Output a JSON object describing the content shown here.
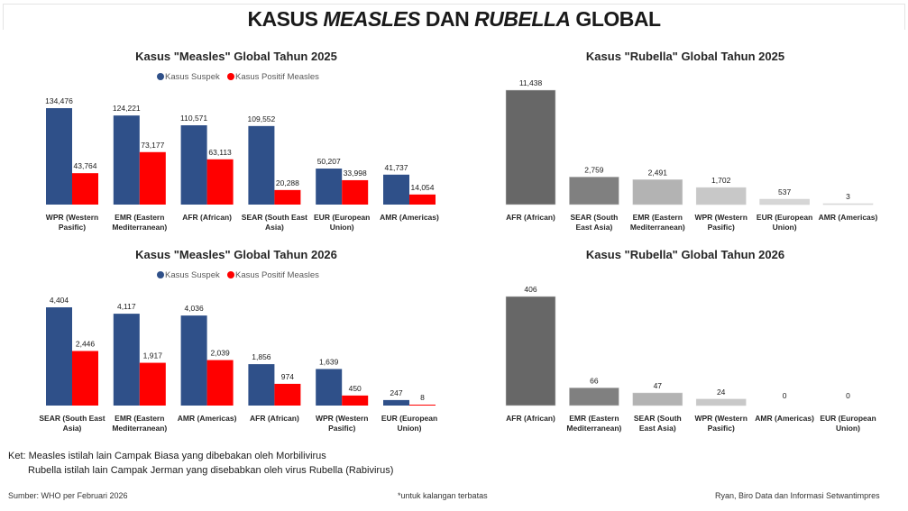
{
  "header": {
    "title_parts": [
      "KASUS ",
      "MEASLES",
      " DAN ",
      "RUBELLA",
      " GLOBAL"
    ]
  },
  "colors": {
    "suspek": "#2f5089",
    "positif": "#ff0000",
    "rubella_shades": [
      "#676767",
      "#808080",
      "#b3b3b3",
      "#c8c8c8",
      "#d6d6d6",
      "#dedede"
    ]
  },
  "chart_data": [
    {
      "id": "measles2025",
      "type": "bar",
      "title": "Kasus \"Measles\" Global Tahun 2025",
      "categories": [
        "WPR (Western|Pasific)",
        "EMR (Eastern|Mediterranean)",
        "AFR (African)",
        "SEAR (South East|Asia)",
        "EUR (European|Union)",
        "AMR (Americas)"
      ],
      "series": [
        {
          "name": "Kasus Suspek",
          "values": [
            134476,
            124221,
            110571,
            109552,
            50207,
            41737
          ]
        },
        {
          "name": "Kasus Positif Measles",
          "values": [
            43764,
            73177,
            63113,
            20288,
            33998,
            14054
          ]
        }
      ],
      "legend": "top-center",
      "grid": false,
      "ylim": [
        0,
        134476
      ]
    },
    {
      "id": "rubella2025",
      "type": "bar",
      "title": "Kasus \"Rubella\" Global Tahun 2025",
      "categories": [
        "AFR (African)",
        "SEAR (South|East Asia)",
        "EMR (Eastern|Mediterranean)",
        "WPR (Western|Pasific)",
        "EUR (European|Union)",
        "AMR (Americas)"
      ],
      "values": [
        11438,
        2759,
        2491,
        1702,
        537,
        3
      ],
      "legend": "none",
      "grid": false,
      "ylim": [
        0,
        11438
      ]
    },
    {
      "id": "measles2026",
      "type": "bar",
      "title": "Kasus \"Measles\" Global Tahun 2026",
      "categories": [
        "SEAR (South East|Asia)",
        "EMR (Eastern|Mediterranean)",
        "AMR (Americas)",
        "AFR (African)",
        "WPR (Western|Pasific)",
        "EUR (European|Union)"
      ],
      "series": [
        {
          "name": "Kasus Suspek",
          "values": [
            4404,
            4117,
            4036,
            1856,
            1639,
            247
          ]
        },
        {
          "name": "Kasus Positif Measles",
          "values": [
            2446,
            1917,
            2039,
            974,
            450,
            8
          ]
        }
      ],
      "legend": "top-center",
      "grid": false,
      "ylim": [
        0,
        4404
      ]
    },
    {
      "id": "rubella2026",
      "type": "bar",
      "title": "Kasus \"Rubella\" Global Tahun 2026",
      "categories": [
        "AFR (African)",
        "EMR (Eastern|Mediterranean)",
        "SEAR (South|East Asia)",
        "WPR (Western|Pasific)",
        "AMR (Americas)",
        "EUR (European|Union)"
      ],
      "values": [
        406,
        66,
        47,
        24,
        0,
        0
      ],
      "legend": "none",
      "grid": false,
      "ylim": [
        0,
        406
      ]
    }
  ],
  "notes": {
    "line1": "Ket: Measles istilah lain Campak Biasa yang dibebakan oleh Morbilivirus",
    "line2": "Rubella istilah lain Campak Jerman yang disebabkan oleh virus Rubella (Rabivirus)"
  },
  "footer": {
    "source": "Sumber: WHO per Februari 2026",
    "restricted": "*untuk kalangan terbatas",
    "author": "Ryan, Biro Data dan Informasi Setwantimpres"
  }
}
